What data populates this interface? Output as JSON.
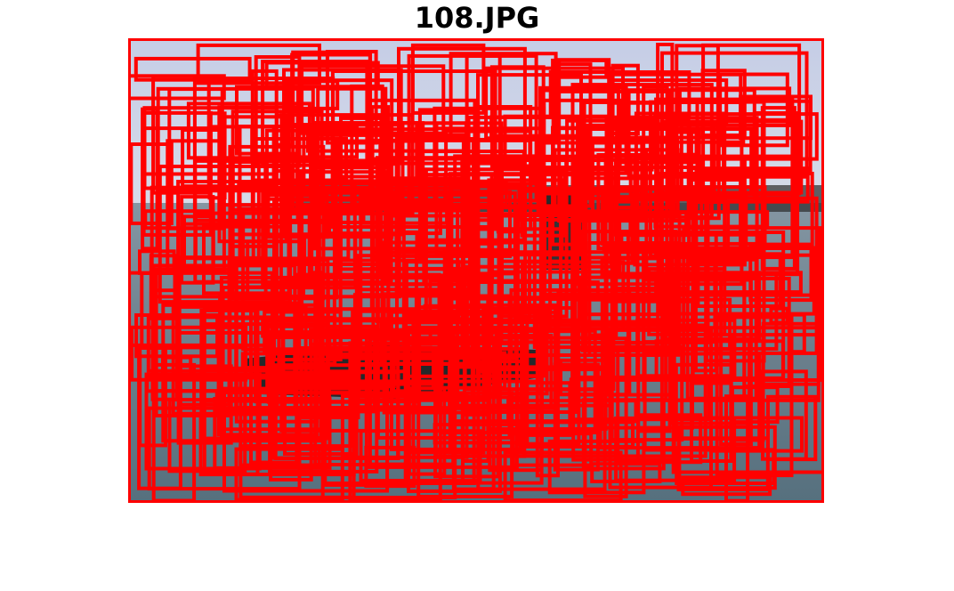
{
  "figure": {
    "title": "108.JPG"
  },
  "photo": {
    "description_icon": "photo-image",
    "box_color": "#ff0000",
    "sky_color": "#c9d2e6",
    "water_color": "#6f8592"
  }
}
